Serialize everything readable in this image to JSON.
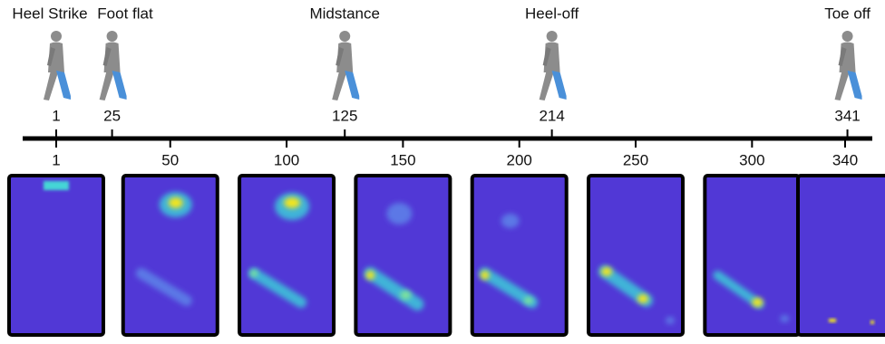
{
  "phases": [
    {
      "label": "Heel Strike",
      "frame": 1
    },
    {
      "label": "Foot flat",
      "frame": 25
    },
    {
      "label": "Midstance",
      "frame": 125
    },
    {
      "label": "Heel-off",
      "frame": 214
    },
    {
      "label": "Toe off",
      "frame": 341
    }
  ],
  "frames": [
    1,
    50,
    100,
    150,
    200,
    250,
    300,
    340
  ]
}
